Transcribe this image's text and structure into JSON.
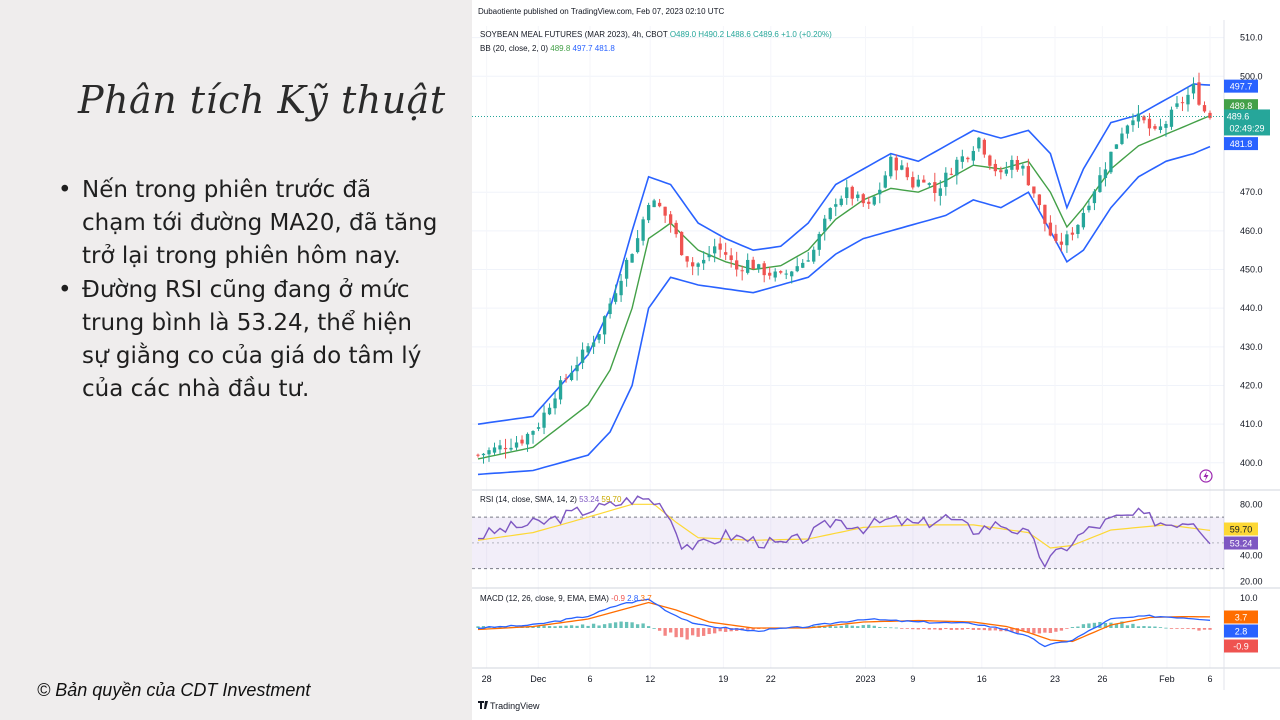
{
  "slide": {
    "title": "Phân tích Kỹ thuật",
    "bullets": [
      "Nến trong phiên trước đã chạm tới đường MA20, đã tăng trở lại trong phiên hôm nay.",
      "Đường RSI cũng đang ở mức trung bình là 53.24, thể hiện sự giằng co của giá do tâm lý của các nhà đầu tư."
    ],
    "bullet_marker": "•",
    "copyright": "© Bản quyền của CDT Investment"
  },
  "tradingview": {
    "publisher_line": "Dubaotiente published on TradingView.com, Feb 07, 2023 02:10 UTC",
    "footer_logo": "TradingView",
    "symbol_line": {
      "name": "SOYBEAN MEAL FUTURES (MAR 2023), 4h, CBOT",
      "open": "O489.0",
      "high": "H490.2",
      "low": "L488.6",
      "close": "C489.6",
      "change": "+1.0 (+0.20%)"
    },
    "bb_line": {
      "label": "BB (20, close, 2, 0)",
      "basis": "489.8",
      "upper": "497.7",
      "lower": "481.8"
    },
    "rsi_line": {
      "label": "RSI (14, close, SMA, 14, 2)",
      "rsi": "53.24",
      "sma": "59.70"
    },
    "macd_line": {
      "label": "MACD (12, 26, close, 9, EMA, EMA)",
      "hist": "-0.9",
      "macd": "2.8",
      "signal": "3.7"
    },
    "price_badges": {
      "upper": "497.7",
      "basis": "489.8",
      "last": "489.6",
      "countdown": "02:49:29",
      "lower": "481.8"
    },
    "rsi_badges": {
      "sma": "59.70",
      "rsi": "53.24"
    },
    "macd_badges": {
      "signal": "3.7",
      "macd": "2.8",
      "hist": "-0.9"
    },
    "lightning_icon": "lightning-icon",
    "colors": {
      "bull": "#26a69a",
      "bear": "#ef5350",
      "bb_band": "#2962ff",
      "bb_basis": "#43a047",
      "rsi": "#7e57c2",
      "rsi_sma": "#fdd835",
      "macd": "#2962ff",
      "signal": "#ff6d00"
    }
  },
  "chart_data": [
    {
      "type": "candlestick",
      "title": "SOYBEAN MEAL FUTURES (MAR 2023), 4h, CBOT",
      "y_ticks": [
        510.0,
        500.0,
        470.0,
        460.0,
        450.0,
        440.0,
        430.0,
        420.0,
        410.0,
        400.0
      ],
      "ylim": [
        394,
        513
      ],
      "x_ticks": [
        "28",
        "Dec",
        "6",
        "12",
        "19",
        "22",
        "2023",
        "9",
        "16",
        "23",
        "26",
        "Feb",
        "6"
      ],
      "last_price": 489.6,
      "close_path": [
        [
          0,
          402
        ],
        [
          4,
          404
        ],
        [
          8,
          406
        ],
        [
          11,
          410
        ],
        [
          14,
          418
        ],
        [
          17,
          424
        ],
        [
          20,
          430
        ],
        [
          22,
          434
        ],
        [
          25,
          445
        ],
        [
          27,
          452
        ],
        [
          29,
          458
        ],
        [
          31,
          468
        ],
        [
          33,
          466
        ],
        [
          35,
          462
        ],
        [
          37,
          455
        ],
        [
          39,
          451
        ],
        [
          41,
          452
        ],
        [
          43,
          456
        ],
        [
          45,
          454
        ],
        [
          47,
          450
        ],
        [
          49,
          452
        ],
        [
          51,
          450
        ],
        [
          53,
          449
        ],
        [
          55,
          448
        ],
        [
          57,
          450
        ],
        [
          59,
          452
        ],
        [
          61,
          455
        ],
        [
          63,
          462
        ],
        [
          65,
          468
        ],
        [
          67,
          470
        ],
        [
          69,
          468
        ],
        [
          71,
          466
        ],
        [
          73,
          471
        ],
        [
          75,
          478
        ],
        [
          77,
          476
        ],
        [
          79,
          472
        ],
        [
          81,
          474
        ],
        [
          83,
          470
        ],
        [
          85,
          474
        ],
        [
          87,
          478
        ],
        [
          89,
          480
        ],
        [
          91,
          484
        ],
        [
          93,
          478
        ],
        [
          95,
          474
        ],
        [
          97,
          478
        ],
        [
          99,
          476
        ],
        [
          101,
          470
        ],
        [
          103,
          462
        ],
        [
          105,
          456
        ],
        [
          107,
          458
        ],
        [
          109,
          462
        ],
        [
          111,
          468
        ],
        [
          113,
          474
        ],
        [
          115,
          480
        ],
        [
          117,
          486
        ],
        [
          119,
          490
        ],
        [
          121,
          488
        ],
        [
          123,
          485
        ],
        [
          125,
          488
        ],
        [
          127,
          492
        ],
        [
          129,
          495
        ],
        [
          130,
          497
        ],
        [
          131,
          494
        ],
        [
          132,
          491
        ],
        [
          133,
          489.6
        ]
      ],
      "bollinger": {
        "upper": [
          [
            0,
            410
          ],
          [
            10,
            412
          ],
          [
            20,
            428
          ],
          [
            24,
            440
          ],
          [
            28,
            460
          ],
          [
            31,
            474
          ],
          [
            35,
            472
          ],
          [
            40,
            462
          ],
          [
            45,
            458
          ],
          [
            50,
            455
          ],
          [
            55,
            456
          ],
          [
            60,
            462
          ],
          [
            65,
            472
          ],
          [
            70,
            476
          ],
          [
            75,
            480
          ],
          [
            80,
            478
          ],
          [
            85,
            482
          ],
          [
            90,
            486
          ],
          [
            95,
            484
          ],
          [
            100,
            486
          ],
          [
            104,
            480
          ],
          [
            107,
            466
          ],
          [
            110,
            476
          ],
          [
            115,
            488
          ],
          [
            120,
            490
          ],
          [
            125,
            494
          ],
          [
            130,
            498
          ],
          [
            133,
            497.7
          ]
        ],
        "basis": [
          [
            0,
            401
          ],
          [
            10,
            404
          ],
          [
            20,
            415
          ],
          [
            24,
            424
          ],
          [
            28,
            440
          ],
          [
            31,
            458
          ],
          [
            35,
            462
          ],
          [
            40,
            455
          ],
          [
            45,
            452
          ],
          [
            50,
            450
          ],
          [
            55,
            451
          ],
          [
            60,
            455
          ],
          [
            65,
            463
          ],
          [
            70,
            468
          ],
          [
            75,
            471
          ],
          [
            80,
            470
          ],
          [
            85,
            473
          ],
          [
            90,
            477
          ],
          [
            95,
            476
          ],
          [
            100,
            478
          ],
          [
            104,
            470
          ],
          [
            107,
            461
          ],
          [
            110,
            466
          ],
          [
            115,
            476
          ],
          [
            120,
            482
          ],
          [
            125,
            485
          ],
          [
            130,
            488
          ],
          [
            133,
            489.8
          ]
        ],
        "lower": [
          [
            0,
            397
          ],
          [
            10,
            398
          ],
          [
            20,
            402
          ],
          [
            24,
            408
          ],
          [
            28,
            420
          ],
          [
            31,
            440
          ],
          [
            35,
            448
          ],
          [
            40,
            446
          ],
          [
            45,
            445
          ],
          [
            50,
            444
          ],
          [
            55,
            446
          ],
          [
            60,
            448
          ],
          [
            65,
            454
          ],
          [
            70,
            458
          ],
          [
            75,
            460
          ],
          [
            80,
            462
          ],
          [
            85,
            464
          ],
          [
            90,
            468
          ],
          [
            95,
            466
          ],
          [
            100,
            470
          ],
          [
            104,
            460
          ],
          [
            107,
            452
          ],
          [
            110,
            455
          ],
          [
            115,
            466
          ],
          [
            120,
            474
          ],
          [
            125,
            478
          ],
          [
            130,
            480
          ],
          [
            133,
            481.8
          ]
        ]
      }
    },
    {
      "type": "line",
      "title": "RSI (14, close, SMA, 14, 2)",
      "y_ticks": [
        80.0,
        40.0,
        20.0
      ],
      "ylim": [
        18,
        88
      ],
      "bands": [
        30,
        70
      ],
      "series": [
        {
          "name": "RSI",
          "values": [
            [
              0,
              55
            ],
            [
              6,
              62
            ],
            [
              12,
              66
            ],
            [
              18,
              74
            ],
            [
              24,
              79
            ],
            [
              28,
              84
            ],
            [
              31,
              84
            ],
            [
              34,
              78
            ],
            [
              37,
              50
            ],
            [
              40,
              47
            ],
            [
              45,
              56
            ],
            [
              50,
              52
            ],
            [
              55,
              48
            ],
            [
              60,
              55
            ],
            [
              65,
              68
            ],
            [
              70,
              62
            ],
            [
              75,
              68
            ],
            [
              80,
              64
            ],
            [
              85,
              70
            ],
            [
              90,
              60
            ],
            [
              95,
              65
            ],
            [
              100,
              56
            ],
            [
              103,
              34
            ],
            [
              106,
              44
            ],
            [
              110,
              58
            ],
            [
              115,
              68
            ],
            [
              120,
              72
            ],
            [
              125,
              65
            ],
            [
              130,
              68
            ],
            [
              133,
              53.24
            ]
          ]
        },
        {
          "name": "SMA",
          "values": [
            [
              0,
              52
            ],
            [
              10,
              58
            ],
            [
              20,
              70
            ],
            [
              28,
              80
            ],
            [
              32,
              80
            ],
            [
              36,
              66
            ],
            [
              40,
              54
            ],
            [
              50,
              52
            ],
            [
              60,
              53
            ],
            [
              70,
              62
            ],
            [
              80,
              64
            ],
            [
              90,
              64
            ],
            [
              100,
              58
            ],
            [
              104,
              46
            ],
            [
              108,
              48
            ],
            [
              115,
              60
            ],
            [
              125,
              64
            ],
            [
              133,
              59.7
            ]
          ]
        }
      ]
    },
    {
      "type": "line",
      "title": "MACD (12, 26, close, 9, EMA, EMA)",
      "y_ticks": [
        10.0
      ],
      "ylim": [
        -12,
        12
      ],
      "series": [
        {
          "name": "MACD",
          "values": [
            [
              0,
              0
            ],
            [
              10,
              1
            ],
            [
              20,
              4
            ],
            [
              26,
              8
            ],
            [
              31,
              9.6
            ],
            [
              35,
              5
            ],
            [
              40,
              1
            ],
            [
              50,
              -1
            ],
            [
              60,
              0.5
            ],
            [
              70,
              3
            ],
            [
              80,
              2
            ],
            [
              90,
              1.5
            ],
            [
              96,
              -0.5
            ],
            [
              100,
              -3
            ],
            [
              103,
              -6
            ],
            [
              108,
              -4
            ],
            [
              115,
              3
            ],
            [
              122,
              4
            ],
            [
              128,
              3.5
            ],
            [
              133,
              2.8
            ]
          ]
        },
        {
          "name": "Signal",
          "values": [
            [
              0,
              -0.5
            ],
            [
              10,
              0.5
            ],
            [
              20,
              3
            ],
            [
              26,
              6
            ],
            [
              31,
              8.5
            ],
            [
              36,
              6
            ],
            [
              42,
              2
            ],
            [
              50,
              0
            ],
            [
              60,
              0
            ],
            [
              70,
              2
            ],
            [
              80,
              2.5
            ],
            [
              90,
              2
            ],
            [
              96,
              0.5
            ],
            [
              100,
              -1.5
            ],
            [
              104,
              -4
            ],
            [
              108,
              -4.5
            ],
            [
              115,
              1
            ],
            [
              122,
              3.5
            ],
            [
              128,
              3.8
            ],
            [
              133,
              3.7
            ]
          ]
        },
        {
          "name": "Histogram",
          "values": [
            [
              0,
              0.5
            ],
            [
              10,
              0.5
            ],
            [
              20,
              1
            ],
            [
              26,
              2
            ],
            [
              31,
              1
            ],
            [
              34,
              -2
            ],
            [
              38,
              -3
            ],
            [
              45,
              -1
            ],
            [
              60,
              0.5
            ],
            [
              70,
              1
            ],
            [
              80,
              -0.5
            ],
            [
              90,
              -0.5
            ],
            [
              96,
              -1
            ],
            [
              100,
              -1.5
            ],
            [
              104,
              -2
            ],
            [
              108,
              0.5
            ],
            [
              115,
              2
            ],
            [
              122,
              0.5
            ],
            [
              128,
              -0.3
            ],
            [
              133,
              -0.9
            ]
          ]
        }
      ]
    }
  ]
}
